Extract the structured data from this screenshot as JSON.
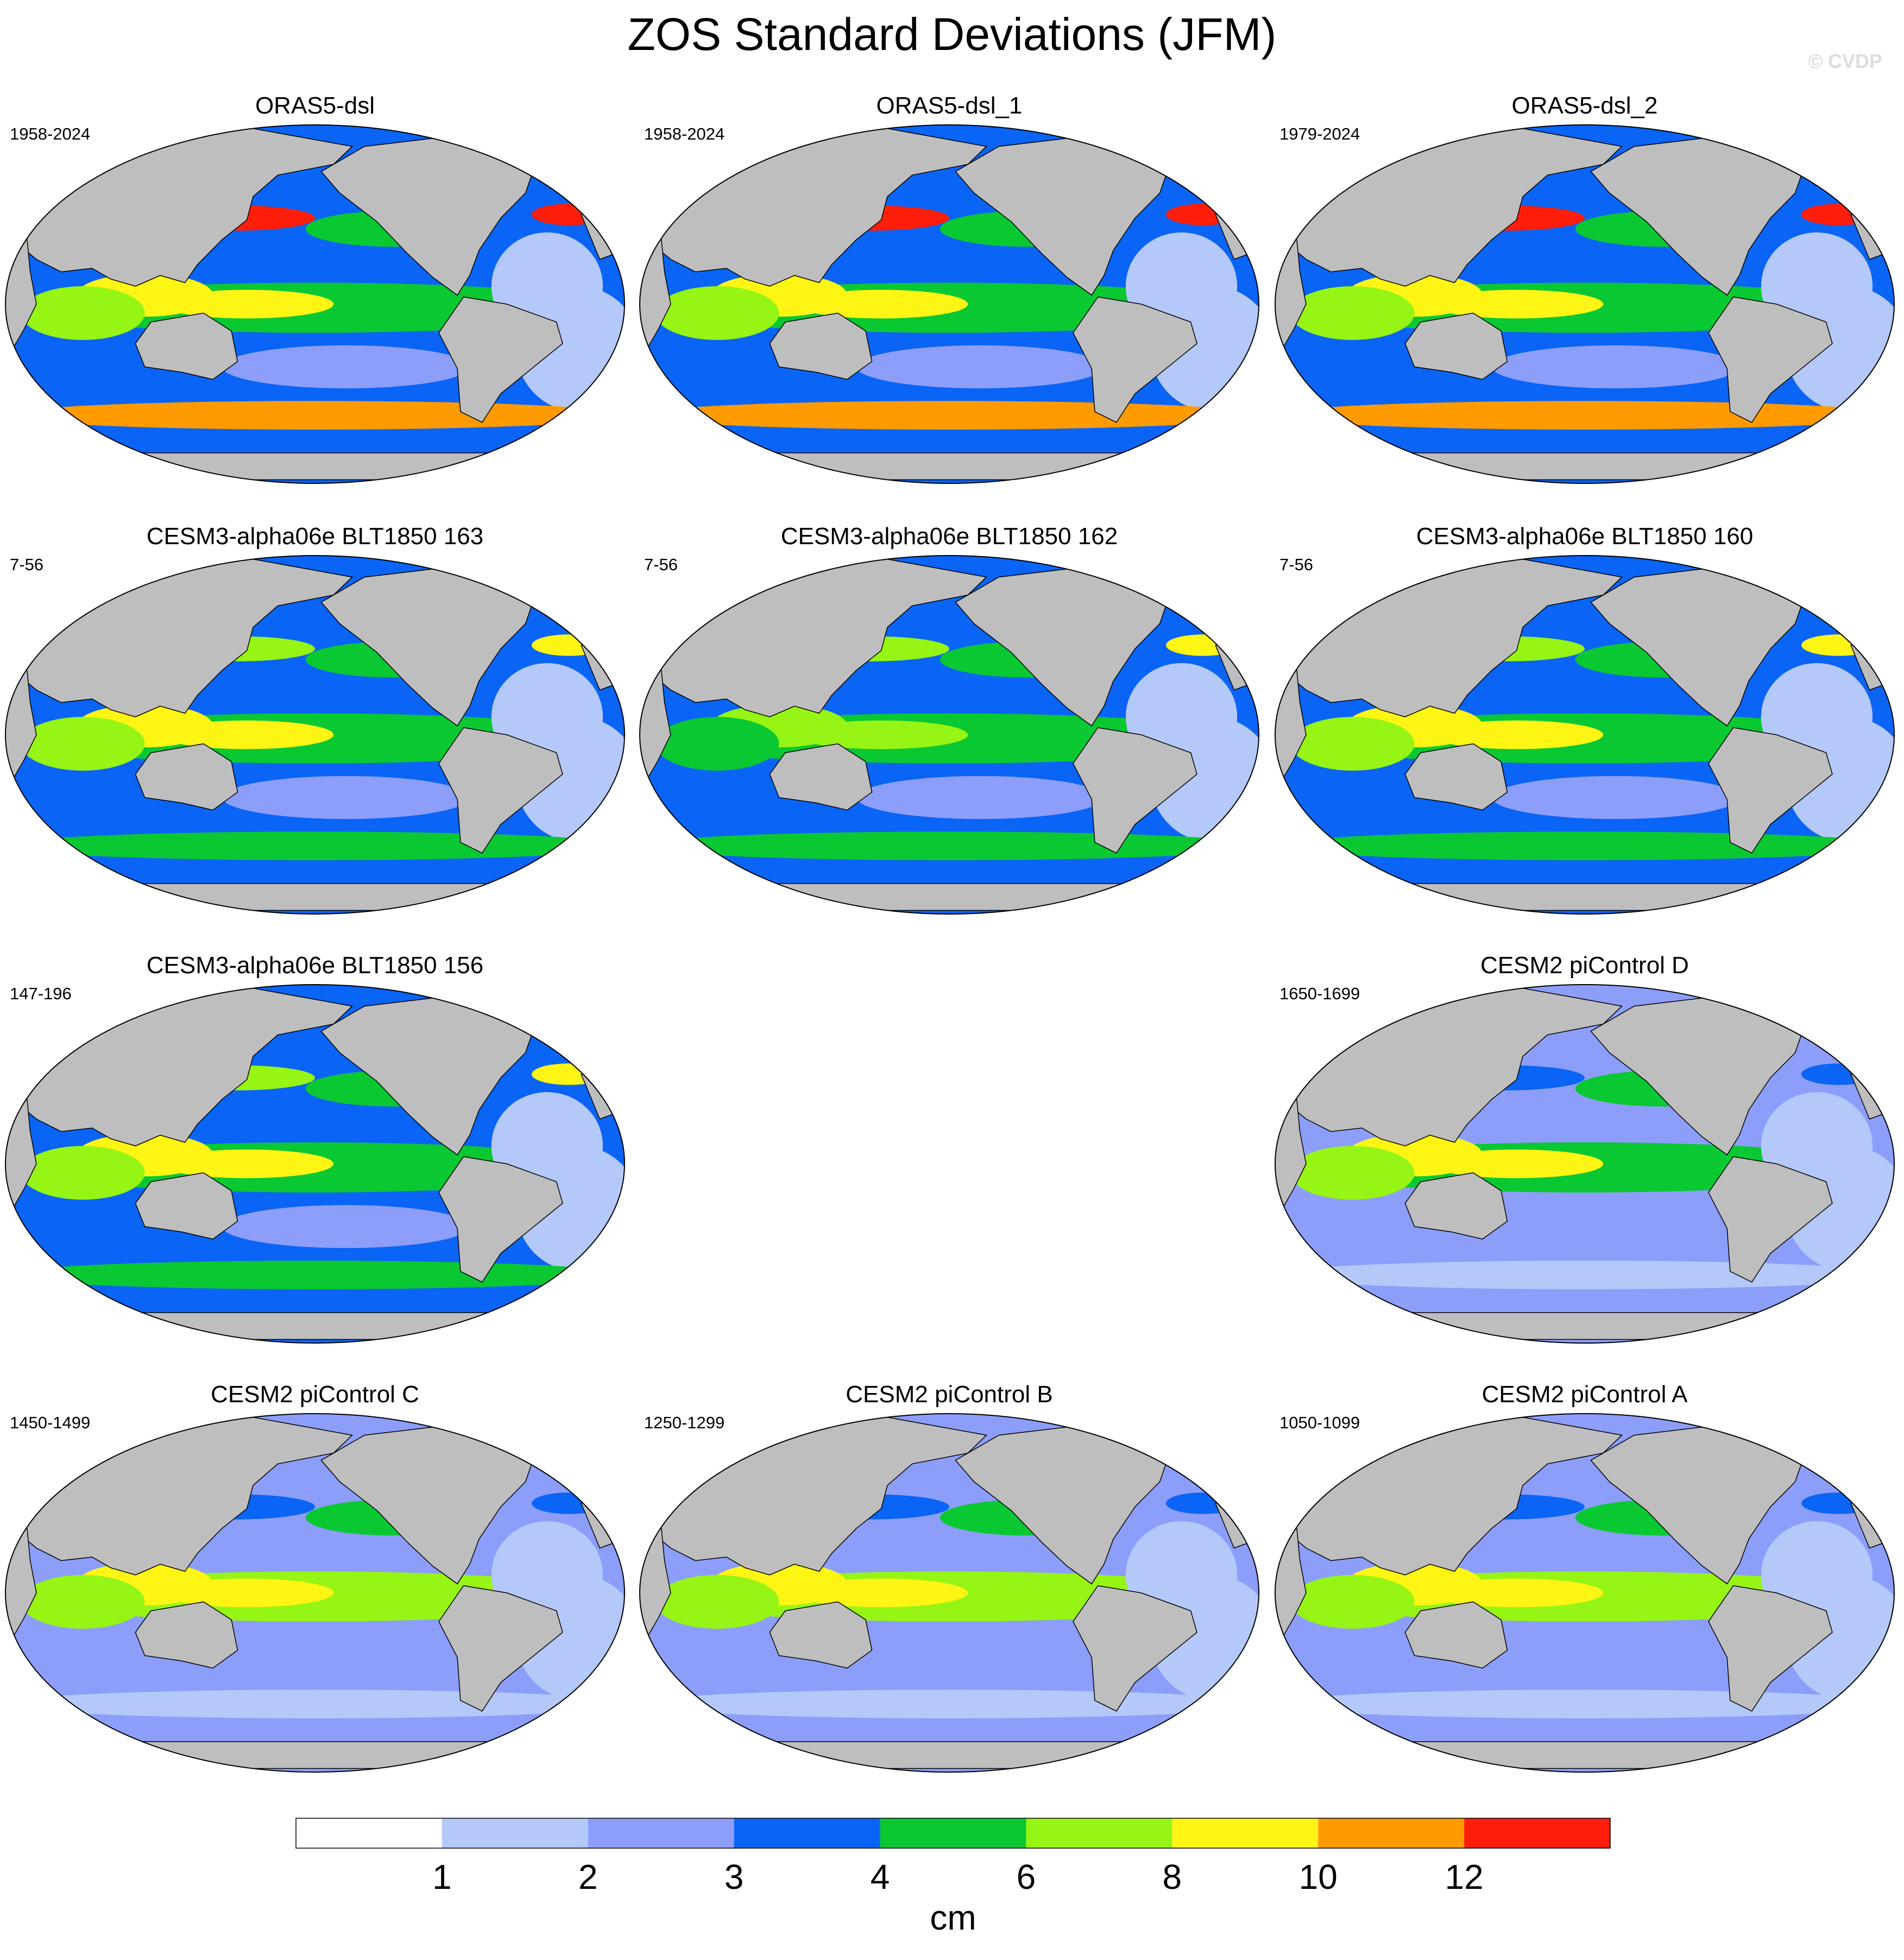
{
  "figure": {
    "title": "ZOS Standard Deviations (JFM)",
    "watermark": "© CVDP"
  },
  "colors": {
    "land": "#bebebe",
    "coast": "#000000",
    "bins": [
      "#ffffff",
      "#b4c8fa",
      "#8c9efa",
      "#0a64f5",
      "#0ac832",
      "#96f514",
      "#fff514",
      "#ff9b00",
      "#ff1e0a"
    ]
  },
  "chart_data": {
    "type": "heatmap",
    "projection": "Robinson (Pacific-centred)",
    "panels": [
      {
        "id": "oras5-dsl",
        "title": "ORAS5-dsl",
        "period": "1958-2024",
        "row": 0,
        "col": 0,
        "regional_std_cm": {
          "kuroshio": 12,
          "gulf_stream": 12,
          "southern_ocean": 10,
          "tropical_west_pacific": 9,
          "tropical_east_pacific": 5,
          "south_atlantic": 1.5
        }
      },
      {
        "id": "oras5-dsl-1",
        "title": "ORAS5-dsl_1",
        "period": "1958-2024",
        "row": 0,
        "col": 1,
        "regional_std_cm": {
          "kuroshio": 12,
          "gulf_stream": 12,
          "southern_ocean": 10,
          "tropical_west_pacific": 9,
          "tropical_east_pacific": 5,
          "south_atlantic": 1.5
        }
      },
      {
        "id": "oras5-dsl-2",
        "title": "ORAS5-dsl_2",
        "period": "1979-2024",
        "row": 0,
        "col": 2,
        "regional_std_cm": {
          "kuroshio": 12,
          "gulf_stream": 12,
          "southern_ocean": 10,
          "tropical_west_pacific": 9,
          "tropical_east_pacific": 5,
          "south_atlantic": 1.5
        }
      },
      {
        "id": "cesm3-163",
        "title": "CESM3-alpha06e BLT1850 163",
        "period": "7-56",
        "row": 1,
        "col": 0,
        "regional_std_cm": {
          "kuroshio": 7,
          "gulf_stream": 9,
          "southern_ocean": 5,
          "tropical_west_pacific": 8,
          "tropical_east_pacific": 5,
          "south_atlantic": 1.5
        }
      },
      {
        "id": "cesm3-162",
        "title": "CESM3-alpha06e BLT1850 162",
        "period": "7-56",
        "row": 1,
        "col": 1,
        "regional_std_cm": {
          "kuroshio": 7,
          "gulf_stream": 8,
          "southern_ocean": 5,
          "tropical_west_pacific": 7,
          "tropical_east_pacific": 5,
          "south_atlantic": 1.5
        }
      },
      {
        "id": "cesm3-160",
        "title": "CESM3-alpha06e BLT1850 160",
        "period": "7-56",
        "row": 1,
        "col": 2,
        "regional_std_cm": {
          "kuroshio": 7,
          "gulf_stream": 8,
          "southern_ocean": 5,
          "tropical_west_pacific": 8,
          "tropical_east_pacific": 5,
          "south_atlantic": 1.5
        }
      },
      {
        "id": "cesm3-156",
        "title": "CESM3-alpha06e BLT1850 156",
        "period": "147-196",
        "row": 2,
        "col": 0,
        "regional_std_cm": {
          "kuroshio": 7,
          "gulf_stream": 8,
          "southern_ocean": 5,
          "tropical_west_pacific": 8,
          "tropical_east_pacific": 5,
          "south_atlantic": 1.5
        }
      },
      {
        "id": "cesm2-d",
        "title": "CESM2 piControl D",
        "period": "1650-1699",
        "row": 2,
        "col": 2,
        "regional_std_cm": {
          "kuroshio": 3,
          "gulf_stream": 3,
          "southern_ocean": 1.5,
          "tropical_west_pacific": 9,
          "tropical_east_pacific": 5,
          "south_atlantic": 1
        }
      },
      {
        "id": "cesm2-c",
        "title": "CESM2 piControl C",
        "period": "1450-1499",
        "row": 3,
        "col": 0,
        "regional_std_cm": {
          "kuroshio": 3,
          "gulf_stream": 3,
          "southern_ocean": 1.5,
          "tropical_west_pacific": 9,
          "tropical_east_pacific": 6,
          "south_atlantic": 1
        }
      },
      {
        "id": "cesm2-b",
        "title": "CESM2 piControl B",
        "period": "1250-1299",
        "row": 3,
        "col": 1,
        "regional_std_cm": {
          "kuroshio": 3,
          "gulf_stream": 3,
          "southern_ocean": 1.5,
          "tropical_west_pacific": 9,
          "tropical_east_pacific": 6,
          "south_atlantic": 1
        }
      },
      {
        "id": "cesm2-a",
        "title": "CESM2 piControl A",
        "period": "1050-1099",
        "row": 3,
        "col": 2,
        "regional_std_cm": {
          "kuroshio": 3,
          "gulf_stream": 3,
          "southern_ocean": 1.5,
          "tropical_west_pacific": 9,
          "tropical_east_pacific": 6,
          "south_atlantic": 1
        }
      }
    ],
    "colorbar": {
      "levels": [
        1,
        2,
        3,
        4,
        6,
        8,
        10,
        12
      ],
      "tick_labels": [
        "1",
        "2",
        "3",
        "4",
        "6",
        "8",
        "10",
        "12"
      ],
      "unit_label": "cm"
    }
  }
}
